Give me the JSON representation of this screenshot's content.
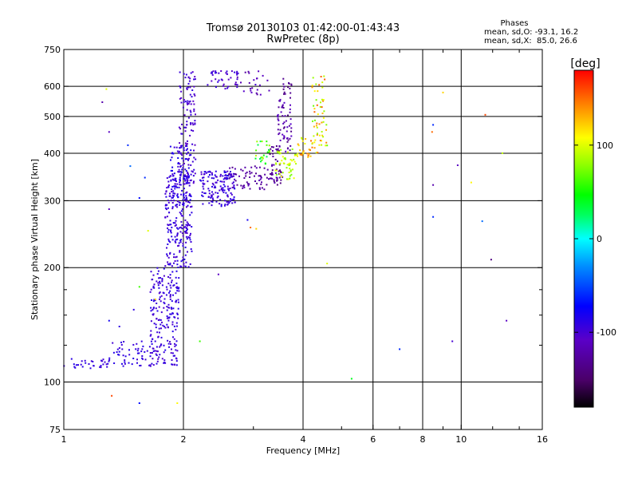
{
  "chart_data": {
    "type": "scatter",
    "title": "Tromsø 20130103 01:42:00-01:43:43",
    "subtitle": "RwPretec (8p)",
    "xlabel": "Frequency [MHz]",
    "ylabel": "Stationary phase Virtual Height [km]",
    "x_scale": "log2",
    "y_scale": "log",
    "xlim": [
      1,
      16
    ],
    "ylim": [
      75,
      750
    ],
    "x_ticks": [
      1,
      2,
      4,
      6,
      8,
      10,
      16
    ],
    "x_tick_labels": [
      "1",
      "2",
      "4",
      "6",
      "8",
      "10",
      "16"
    ],
    "x_minor_ticks": [
      3,
      5,
      7,
      9,
      12,
      14
    ],
    "y_ticks": [
      75,
      100,
      200,
      300,
      400,
      500,
      600,
      750
    ],
    "y_tick_labels": [
      "75",
      "100",
      "200",
      "300",
      "400",
      "500",
      "600",
      "750"
    ],
    "y_minor_ticks": [
      125,
      150,
      175
    ],
    "grid": true,
    "legend": {
      "title": "Phases",
      "lines": [
        "mean, sd,O: -93.1, 16.2",
        "mean, sd,X:  85.0, 26.6"
      ],
      "placement": "top-right"
    },
    "colorbar": {
      "label": "[deg]",
      "range": [
        -180,
        180
      ],
      "ticks": [
        100,
        0,
        -100
      ],
      "tick_labels": [
        "100",
        "0",
        "-100"
      ],
      "colormap": "black-purple-blue-cyan-green-yellow-red"
    },
    "series": [
      {
        "name": "O",
        "phase_mean": -93.1,
        "clusters": [
          {
            "f": [
              1.0,
              1.3
            ],
            "h": [
              108,
              116
            ],
            "phase": [
              -100,
              -85
            ],
            "n": 30
          },
          {
            "f": [
              1.3,
              1.65
            ],
            "h": [
              110,
              128
            ],
            "phase": [
              -100,
              -85
            ],
            "n": 50
          },
          {
            "f": [
              1.65,
              1.95
            ],
            "h": [
              110,
              200
            ],
            "phase": [
              -105,
              -85
            ],
            "n": 220
          },
          {
            "f": [
              1.8,
              2.1
            ],
            "h": [
              200,
              360
            ],
            "phase": [
              -105,
              -85
            ],
            "n": 240
          },
          {
            "f": [
              1.95,
              2.15
            ],
            "h": [
              330,
              660
            ],
            "phase": [
              -110,
              -90
            ],
            "n": 120
          },
          {
            "f": [
              1.85,
              2.1
            ],
            "h": [
              300,
              420
            ],
            "phase": [
              -100,
              -80
            ],
            "n": 80
          },
          {
            "f": [
              2.2,
              2.7
            ],
            "h": [
              290,
              360
            ],
            "phase": [
              -105,
              -85
            ],
            "n": 150
          },
          {
            "f": [
              2.3,
              2.75
            ],
            "h": [
              590,
              660
            ],
            "phase": [
              -110,
              -90
            ],
            "n": 40
          },
          {
            "f": [
              2.7,
              3.3
            ],
            "h": [
              570,
              660
            ],
            "phase": [
              -125,
              -100
            ],
            "n": 25
          },
          {
            "f": [
              2.6,
              3.3
            ],
            "h": [
              320,
              370
            ],
            "phase": [
              -135,
              -115
            ],
            "n": 60
          },
          {
            "f": [
              3.3,
              3.55
            ],
            "h": [
              330,
              420
            ],
            "phase": [
              -145,
              -115
            ],
            "n": 50
          },
          {
            "f": [
              3.45,
              3.75
            ],
            "h": [
              400,
              560
            ],
            "phase": [
              -140,
              -105
            ],
            "n": 60
          },
          {
            "f": [
              3.55,
              3.75
            ],
            "h": [
              560,
              630
            ],
            "phase": [
              -145,
              -125
            ],
            "n": 15
          }
        ]
      },
      {
        "name": "X",
        "phase_mean": 85.0,
        "clusters": [
          {
            "f": [
              3.0,
              3.3
            ],
            "h": [
              375,
              430
            ],
            "phase": [
              25,
              90
            ],
            "n": 25
          },
          {
            "f": [
              3.4,
              3.85
            ],
            "h": [
              340,
              410
            ],
            "phase": [
              70,
              110
            ],
            "n": 50
          },
          {
            "f": [
              3.8,
              4.2
            ],
            "h": [
              390,
              440
            ],
            "phase": [
              90,
              150
            ],
            "n": 25
          },
          {
            "f": [
              4.2,
              4.6
            ],
            "h": [
              400,
              640
            ],
            "phase": [
              70,
              160
            ],
            "n": 60
          }
        ]
      }
    ],
    "scattered_points": [
      {
        "f": 1.25,
        "h": 545,
        "phase": -120
      },
      {
        "f": 1.28,
        "h": 590,
        "phase": 100
      },
      {
        "f": 1.3,
        "h": 455,
        "phase": -110
      },
      {
        "f": 1.3,
        "h": 285,
        "phase": -110
      },
      {
        "f": 1.45,
        "h": 420,
        "phase": -60
      },
      {
        "f": 1.47,
        "h": 370,
        "phase": -40
      },
      {
        "f": 1.6,
        "h": 345,
        "phase": -60
      },
      {
        "f": 1.55,
        "h": 305,
        "phase": -70
      },
      {
        "f": 1.63,
        "h": 250,
        "phase": 100
      },
      {
        "f": 1.55,
        "h": 178,
        "phase": 60
      },
      {
        "f": 1.7,
        "h": 165,
        "phase": 120
      },
      {
        "f": 1.5,
        "h": 155,
        "phase": -90
      },
      {
        "f": 1.3,
        "h": 145,
        "phase": -80
      },
      {
        "f": 1.38,
        "h": 140,
        "phase": -90
      },
      {
        "f": 1.32,
        "h": 92,
        "phase": 160
      },
      {
        "f": 1.55,
        "h": 88,
        "phase": -70
      },
      {
        "f": 1.93,
        "h": 88,
        "phase": 110
      },
      {
        "f": 2.2,
        "h": 128,
        "phase": 60
      },
      {
        "f": 2.9,
        "h": 267,
        "phase": -80
      },
      {
        "f": 2.95,
        "h": 255,
        "phase": 150
      },
      {
        "f": 3.05,
        "h": 253,
        "phase": 120
      },
      {
        "f": 2.45,
        "h": 192,
        "phase": -110
      },
      {
        "f": 4.6,
        "h": 205,
        "phase": 100
      },
      {
        "f": 5.3,
        "h": 102,
        "phase": 40
      },
      {
        "f": 7.0,
        "h": 122,
        "phase": -60
      },
      {
        "f": 8.5,
        "h": 272,
        "phase": -60
      },
      {
        "f": 8.5,
        "h": 330,
        "phase": -120
      },
      {
        "f": 8.45,
        "h": 455,
        "phase": 150
      },
      {
        "f": 8.5,
        "h": 475,
        "phase": -60
      },
      {
        "f": 9.0,
        "h": 578,
        "phase": 120
      },
      {
        "f": 9.5,
        "h": 128,
        "phase": -100
      },
      {
        "f": 9.8,
        "h": 372,
        "phase": -110
      },
      {
        "f": 10.6,
        "h": 335,
        "phase": 110
      },
      {
        "f": 11.3,
        "h": 265,
        "phase": -40
      },
      {
        "f": 11.5,
        "h": 505,
        "phase": 160
      },
      {
        "f": 11.9,
        "h": 210,
        "phase": -140
      },
      {
        "f": 12.7,
        "h": 400,
        "phase": 90
      },
      {
        "f": 13.0,
        "h": 145,
        "phase": -110
      }
    ]
  }
}
